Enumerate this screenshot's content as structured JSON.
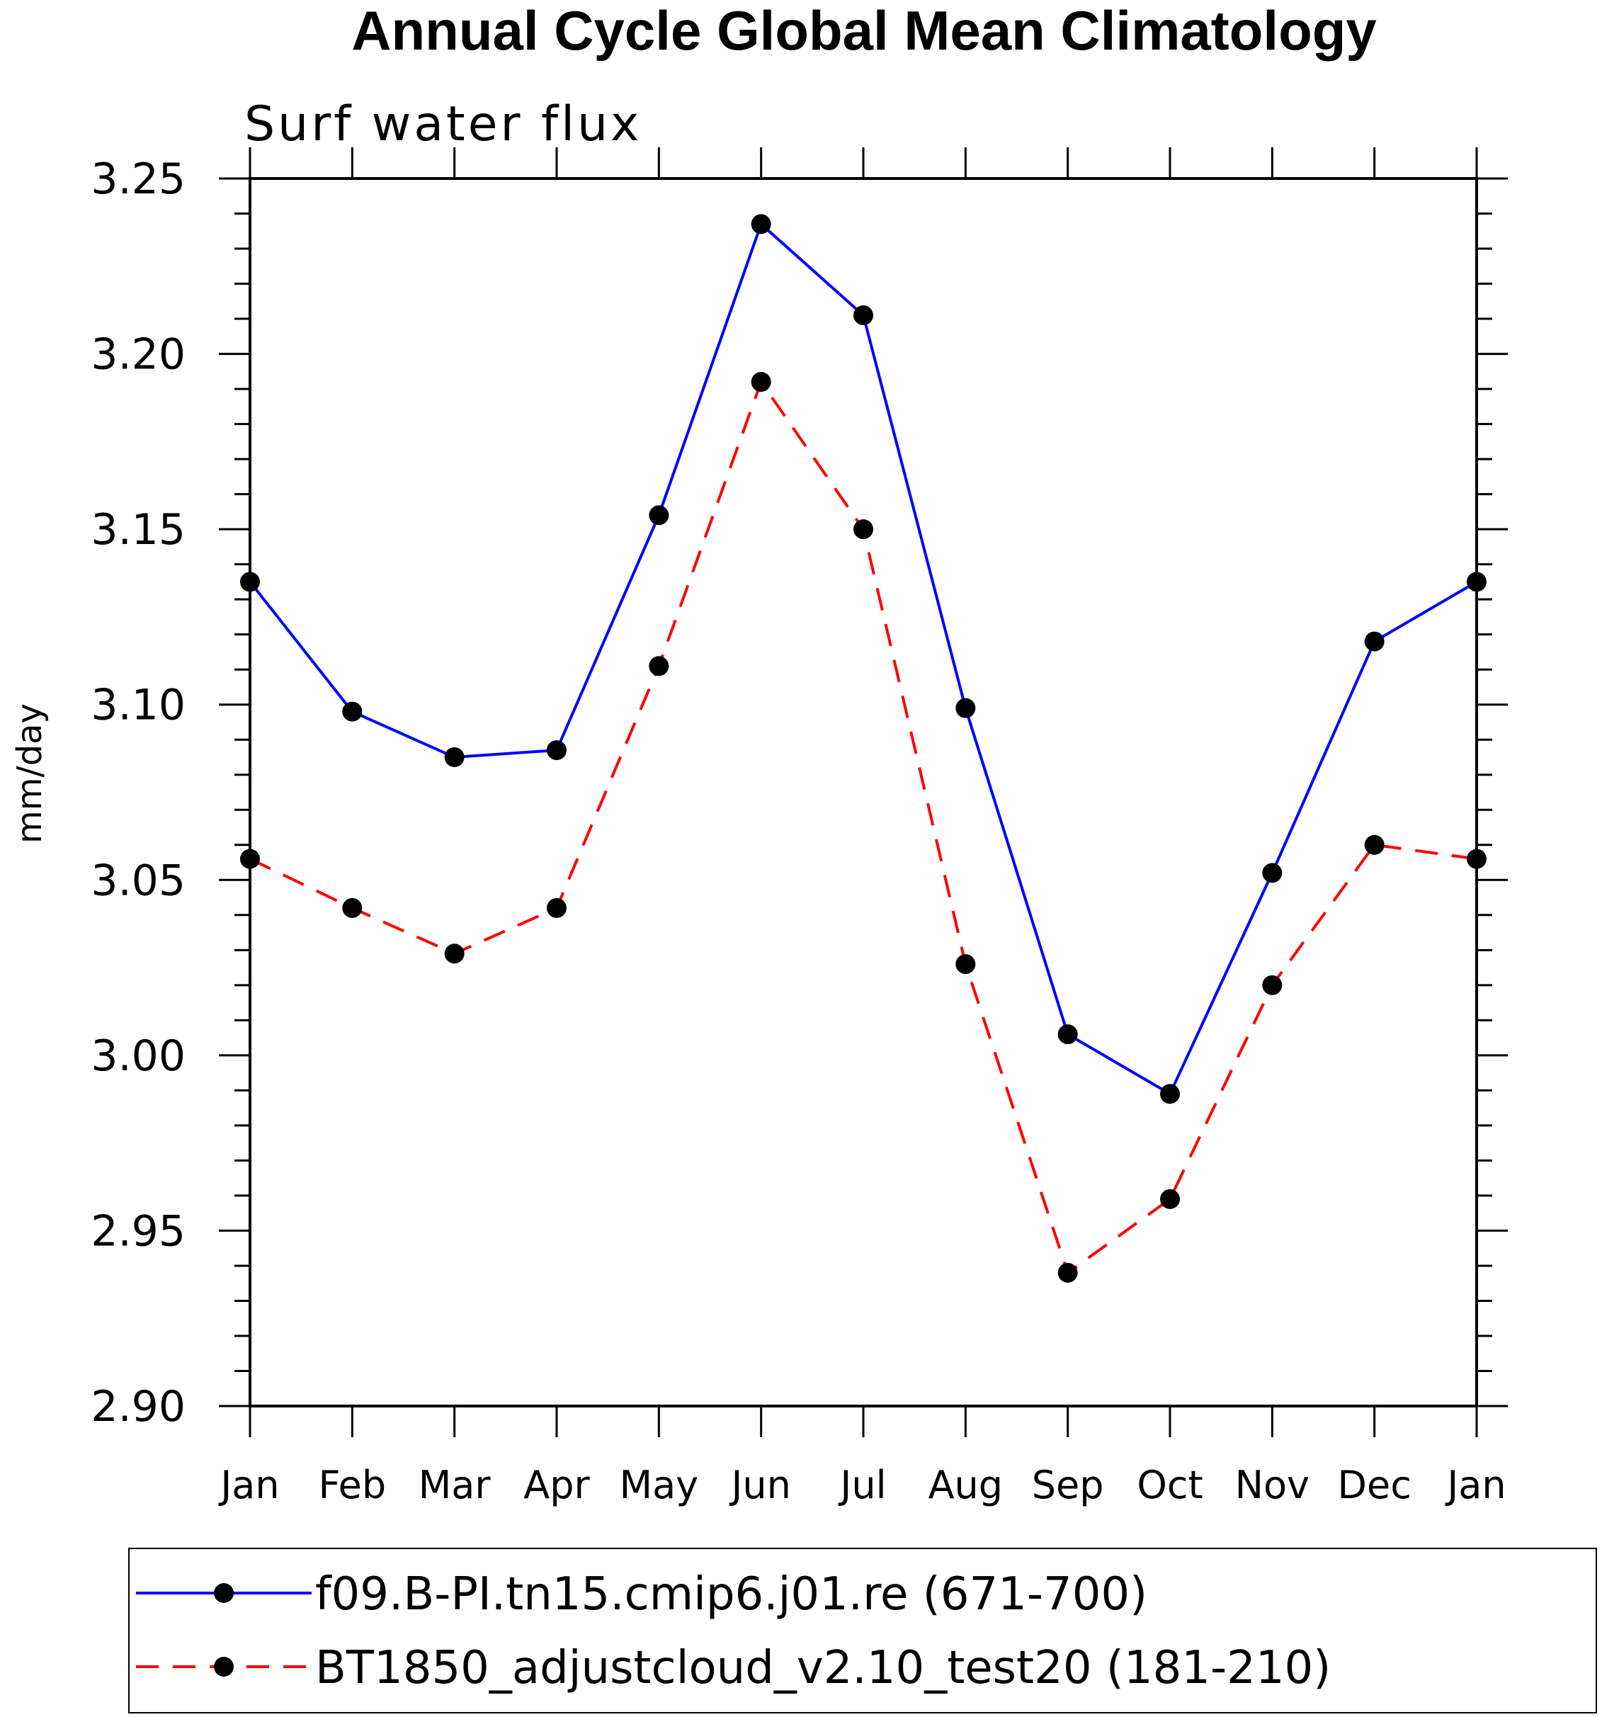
{
  "chart_data": {
    "type": "line",
    "title": "Annual Cycle Global Mean Climatology",
    "subtitle": "Surf water flux",
    "xlabel": "",
    "ylabel": "mm/day",
    "categories": [
      "Jan",
      "Feb",
      "Mar",
      "Apr",
      "May",
      "Jun",
      "Jul",
      "Aug",
      "Sep",
      "Oct",
      "Nov",
      "Dec",
      "Jan"
    ],
    "ylim": [
      2.9,
      3.25
    ],
    "yticks": [
      "2.90",
      "2.95",
      "3.00",
      "3.05",
      "3.10",
      "3.15",
      "3.20",
      "3.25"
    ],
    "series": [
      {
        "name": "f09.B-PI.tn15.cmip6.j01.re (671-700)",
        "color": "#0000ff",
        "dash": "solid",
        "values": [
          3.135,
          3.098,
          3.085,
          3.087,
          3.154,
          3.237,
          3.211,
          3.099,
          3.006,
          2.989,
          3.052,
          3.118,
          3.135
        ]
      },
      {
        "name": "BT1850_adjustcloud_v2.10_test20 (181-210)",
        "color": "#ff0000",
        "dash": "dashed",
        "values": [
          3.056,
          3.042,
          3.029,
          3.042,
          3.111,
          3.192,
          3.15,
          3.026,
          2.938,
          2.959,
          3.02,
          3.06,
          3.056
        ]
      }
    ],
    "marker_color": "#000000",
    "grid": false,
    "legend_position": "bottom"
  }
}
